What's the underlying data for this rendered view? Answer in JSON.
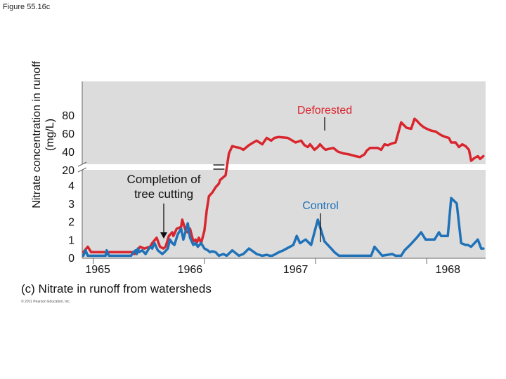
{
  "figure_label": "Figure 55.16c",
  "caption": "(c) Nitrate in runoff from watersheds",
  "copyright": "© 2011 Pearson Education, Inc.",
  "ylabel_lines": [
    "Nitrate concentration in runoff",
    "(mg/L)"
  ],
  "annotations": {
    "completion": [
      "Completion of",
      "tree cutting"
    ],
    "deforested": "Deforested",
    "control": "Control"
  },
  "colors": {
    "deforested": "#d9262e",
    "control": "#1f72b8",
    "plot_bg": "#dcdcdc",
    "axis": "#666666"
  },
  "chart_data": {
    "type": "line",
    "axis_break": "y axis broken between 4 and 20 (upper segment 20–80, lower segment 0–4)",
    "xlabel": "",
    "ylabel": "Nitrate concentration in runoff (mg/L)",
    "x_ticks": [
      "1965",
      "1966",
      "1967",
      "1968"
    ],
    "y_ticks_lower": [
      "0",
      "1",
      "2",
      "3",
      "4"
    ],
    "y_ticks_upper": [
      "20",
      "40",
      "60",
      "80"
    ],
    "xlim": [
      1964.9,
      1968.53
    ],
    "grid": false,
    "series": [
      {
        "name": "Deforested",
        "x": [
          1964.91,
          1964.95,
          1964.98,
          1965.16,
          1965.2,
          1965.35,
          1965.37,
          1965.41,
          1965.42,
          1965.46,
          1965.51,
          1965.53,
          1965.57,
          1965.6,
          1965.63,
          1965.65,
          1965.68,
          1965.71,
          1965.72,
          1965.75,
          1965.79,
          1965.8,
          1965.83,
          1965.85,
          1965.87,
          1965.9,
          1965.92,
          1965.93,
          1965.95,
          1965.97,
          1966.0,
          1966.02,
          1966.04,
          1966.07,
          1966.1,
          1966.13,
          1966.14,
          1966.16,
          1966.19,
          1966.22,
          1966.25,
          1966.28,
          1966.32,
          1966.35,
          1966.38,
          1966.4,
          1966.44,
          1966.47,
          1966.52,
          1966.56,
          1966.6,
          1966.63,
          1966.67,
          1966.75,
          1966.82,
          1966.87,
          1966.9,
          1966.93,
          1966.95,
          1966.99,
          1967.02,
          1967.04,
          1967.07,
          1967.09,
          1967.12,
          1967.16,
          1967.2,
          1967.25,
          1967.3,
          1967.33,
          1967.36,
          1967.4,
          1967.44,
          1967.46,
          1967.49,
          1967.52,
          1967.56,
          1967.59,
          1967.62,
          1967.65,
          1967.69,
          1967.72,
          1967.77,
          1967.82,
          1967.86,
          1967.89,
          1967.91,
          1967.94,
          1967.97,
          1968.0,
          1968.04,
          1968.08,
          1968.13,
          1968.17,
          1968.2,
          1968.22,
          1968.26,
          1968.29,
          1968.32,
          1968.35,
          1968.38,
          1968.4,
          1968.43,
          1968.46,
          1968.48,
          1968.51
        ],
        "y": [
          0.3,
          0.6,
          0.3,
          0.3,
          0.3,
          0.3,
          0.2,
          0.5,
          0.6,
          0.5,
          0.6,
          0.8,
          1.1,
          0.6,
          0.5,
          0.6,
          1.2,
          1.4,
          1.2,
          1.6,
          1.7,
          2.1,
          1.5,
          1.4,
          1.6,
          0.9,
          1.0,
          0.8,
          1.1,
          0.8,
          1.5,
          2.6,
          3.4,
          3.6,
          3.9,
          4.1,
          4.3,
          4.4,
          14,
          38,
          46,
          45,
          44,
          42,
          45,
          47,
          50,
          52,
          48,
          55,
          52,
          55,
          56,
          55,
          50,
          52,
          47,
          45,
          48,
          42,
          45,
          48,
          44,
          42,
          43,
          44,
          40,
          38,
          37,
          36,
          35,
          34,
          37,
          41,
          44,
          44,
          44,
          42,
          48,
          47,
          49,
          50,
          72,
          66,
          65,
          76,
          74,
          70,
          67,
          65,
          63,
          62,
          58,
          56,
          55,
          50,
          50,
          45,
          48,
          46,
          42,
          30,
          33,
          35,
          32,
          35
        ]
      },
      {
        "name": "Control",
        "x": [
          1964.91,
          1964.93,
          1964.95,
          1964.98,
          1965.05,
          1965.11,
          1965.12,
          1965.14,
          1965.27,
          1965.34,
          1965.36,
          1965.38,
          1965.39,
          1965.4,
          1965.41,
          1965.44,
          1965.47,
          1965.51,
          1965.53,
          1965.55,
          1965.58,
          1965.62,
          1965.64,
          1965.67,
          1965.69,
          1965.71,
          1965.73,
          1965.76,
          1965.79,
          1965.81,
          1965.85,
          1965.87,
          1965.9,
          1965.92,
          1965.94,
          1965.97,
          1966.0,
          1966.03,
          1966.05,
          1966.07,
          1966.1,
          1966.13,
          1966.17,
          1966.2,
          1966.25,
          1966.31,
          1966.35,
          1966.4,
          1966.47,
          1966.52,
          1966.56,
          1966.59,
          1966.61,
          1966.64,
          1966.67,
          1966.71,
          1966.74,
          1966.77,
          1966.8,
          1966.83,
          1966.86,
          1966.91,
          1966.96,
          1967.02,
          1967.08,
          1967.14,
          1967.17,
          1967.19,
          1967.21,
          1967.28,
          1967.34,
          1967.42,
          1967.5,
          1967.53,
          1967.6,
          1967.69,
          1967.72,
          1967.77,
          1967.8,
          1967.85,
          1967.91,
          1967.95,
          1967.99,
          1968.03,
          1968.07,
          1968.11,
          1968.13,
          1968.16,
          1968.19,
          1968.22,
          1968.27,
          1968.31,
          1968.35,
          1968.37,
          1968.4,
          1968.46,
          1968.49,
          1968.51
        ],
        "y": [
          0.1,
          0.4,
          0.1,
          0.1,
          0.1,
          0.1,
          0.4,
          0.1,
          0.1,
          0.1,
          0.3,
          0.4,
          0.2,
          0.5,
          0.3,
          0.4,
          0.2,
          0.6,
          0.5,
          0.8,
          0.4,
          0.2,
          0.3,
          0.5,
          1.0,
          0.8,
          0.7,
          1.3,
          1.6,
          1.0,
          1.9,
          1.1,
          0.7,
          0.8,
          0.6,
          0.8,
          0.5,
          0.4,
          0.3,
          0.35,
          0.3,
          0.1,
          0.2,
          0.1,
          0.4,
          0.1,
          0.2,
          0.5,
          0.2,
          0.1,
          0.15,
          0.1,
          0.1,
          0.2,
          0.3,
          0.4,
          0.5,
          0.6,
          0.7,
          1.2,
          0.8,
          1.0,
          0.7,
          2.1,
          0.9,
          0.5,
          0.3,
          0.2,
          0.1,
          0.1,
          0.1,
          0.1,
          0.1,
          0.6,
          0.1,
          0.2,
          0.1,
          0.1,
          0.4,
          0.7,
          1.1,
          1.4,
          1.0,
          1.0,
          1.0,
          1.4,
          1.2,
          1.2,
          1.2,
          3.3,
          3.0,
          0.8,
          0.7,
          0.7,
          0.6,
          1.0,
          0.5,
          0.5
        ]
      }
    ]
  }
}
